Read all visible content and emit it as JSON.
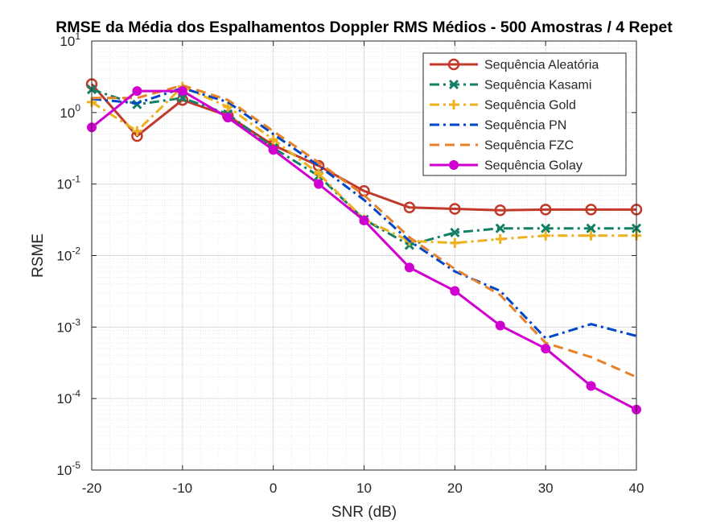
{
  "chart_data": {
    "type": "line",
    "title": "RMSE da Média dos Espalhamentos Doppler RMS Médios - 500 Amostras / 4 Repet",
    "xlabel": "SNR (dB)",
    "ylabel": "RSME",
    "xlim": [
      -20,
      40
    ],
    "ylim": [
      1e-05,
      10
    ],
    "yscale": "log",
    "grid": true,
    "minor_grid": true,
    "legend_position": "top-right",
    "x_ticks": [
      "-20",
      "-10",
      "0",
      "10",
      "20",
      "30",
      "40"
    ],
    "y_ticks": [
      {
        "base": "10",
        "exp": "-5"
      },
      {
        "base": "10",
        "exp": "-4"
      },
      {
        "base": "10",
        "exp": "-3"
      },
      {
        "base": "10",
        "exp": "-2"
      },
      {
        "base": "10",
        "exp": "-1"
      },
      {
        "base": "10",
        "exp": "0"
      },
      {
        "base": "10",
        "exp": "1"
      }
    ],
    "x": [
      -20,
      -15,
      -10,
      -5,
      0,
      5,
      10,
      15,
      20,
      25,
      30,
      35,
      40
    ],
    "series": [
      {
        "name": "Sequência Aleatória",
        "color": "#C0392B",
        "style": "solid",
        "marker": "circle",
        "values": [
          2.5,
          0.47,
          1.5,
          0.9,
          0.35,
          0.18,
          0.08,
          0.047,
          0.045,
          0.043,
          0.044,
          0.044,
          0.044
        ]
      },
      {
        "name": "Sequência Kasami",
        "color": "#138066",
        "style": "dashdot",
        "marker": "x",
        "values": [
          2.1,
          1.3,
          1.6,
          0.95,
          0.32,
          0.13,
          0.032,
          0.014,
          0.021,
          0.024,
          0.024,
          0.024,
          0.024
        ]
      },
      {
        "name": "Sequência Gold",
        "color": "#EDB120",
        "style": "dashdot",
        "marker": "plus",
        "values": [
          1.4,
          0.55,
          2.3,
          1.2,
          0.42,
          0.14,
          0.032,
          0.016,
          0.015,
          0.017,
          0.019,
          0.019,
          0.019
        ]
      },
      {
        "name": "Sequência PN",
        "color": "#0047C8",
        "style": "dashdot",
        "marker": "none",
        "values": [
          1.55,
          1.35,
          2.2,
          1.4,
          0.5,
          0.18,
          0.06,
          0.016,
          0.006,
          0.0032,
          0.0007,
          0.0011,
          0.00075
        ]
      },
      {
        "name": "Sequência FZC",
        "color": "#E8822A",
        "style": "dashed",
        "marker": "none",
        "values": [
          1.6,
          1.6,
          2.4,
          1.5,
          0.55,
          0.2,
          0.07,
          0.018,
          0.0065,
          0.0028,
          0.0006,
          0.00038,
          0.0002
        ]
      },
      {
        "name": "Sequência Golay",
        "color": "#D000D0",
        "style": "solid",
        "marker": "dot",
        "values": [
          0.62,
          2.0,
          2.0,
          0.85,
          0.3,
          0.1,
          0.031,
          0.0068,
          0.0032,
          0.00105,
          0.0005,
          0.00015,
          7e-05
        ]
      }
    ]
  }
}
